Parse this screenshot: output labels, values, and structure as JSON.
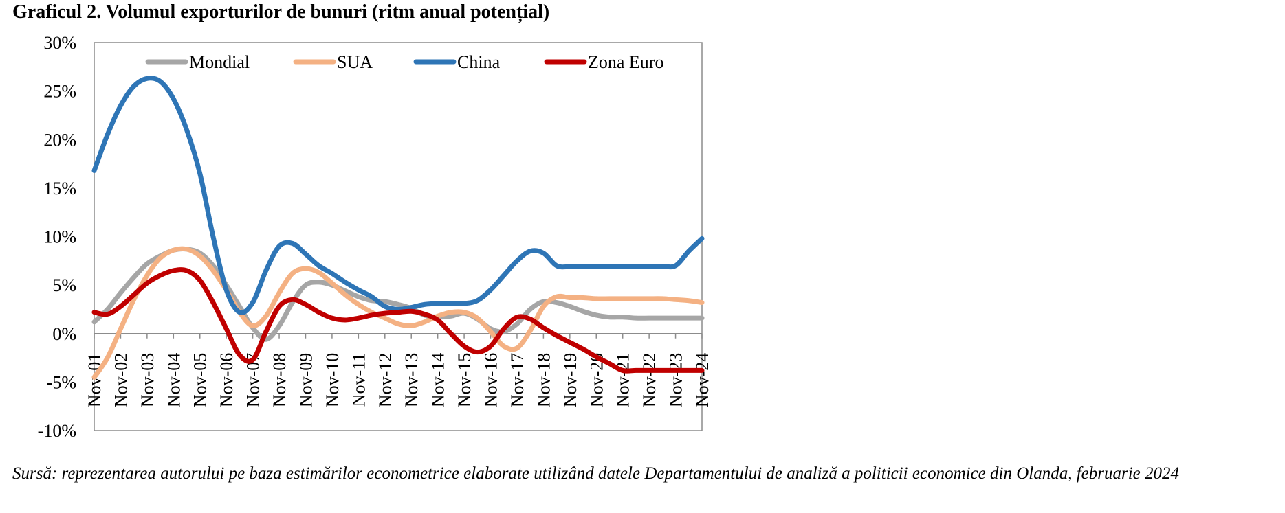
{
  "title": "Graficul 2. Volumul exporturilor de bunuri (ritm anual potențial)",
  "source_note": "Sursă: reprezentarea autorului pe baza estimărilor econometrice elaborate utilizând datele Departamentului de analiză a politicii economice din Olanda, februarie 2024",
  "chart_data": {
    "type": "line",
    "title": "Graficul 2. Volumul exporturilor de bunuri (ritm anual potențial)",
    "categories": [
      "Nov-01",
      "Nov-02",
      "Nov-03",
      "Nov-04",
      "Nov-05",
      "Nov-06",
      "Nov-07",
      "Nov-08",
      "Nov-09",
      "Nov-10",
      "Nov-11",
      "Nov-12",
      "Nov-13",
      "Nov-14",
      "Nov-15",
      "Nov-16",
      "Nov-17",
      "Nov-18",
      "Nov-19",
      "Nov-20",
      "Nov-21",
      "Nov-22",
      "Nov-23",
      "Nov-24"
    ],
    "x": [
      2001.0,
      2001.5,
      2002.0,
      2002.5,
      2003.0,
      2003.5,
      2004.0,
      2004.5,
      2005.0,
      2005.5,
      2006.0,
      2006.5,
      2007.0,
      2007.5,
      2008.0,
      2008.5,
      2009.0,
      2009.5,
      2010.0,
      2010.5,
      2011.0,
      2011.5,
      2012.0,
      2012.5,
      2013.0,
      2013.5,
      2014.0,
      2014.5,
      2015.0,
      2015.5,
      2016.0,
      2016.5,
      2017.0,
      2017.5,
      2018.0,
      2018.5,
      2019.0,
      2019.5,
      2020.0,
      2020.5,
      2021.0,
      2021.5,
      2022.0,
      2022.5,
      2023.0,
      2023.5,
      2024.0
    ],
    "ylim": [
      -10,
      30
    ],
    "y_ticks": [
      30,
      25,
      20,
      15,
      10,
      5,
      0,
      -5,
      -10
    ],
    "y_tick_labels": [
      "30%",
      "25%",
      "20%",
      "15%",
      "10%",
      "5%",
      "0%",
      "-5%",
      "-10%"
    ],
    "y_unit": "%",
    "grid": false,
    "legend_position": "top-inside",
    "series": [
      {
        "name": "Mondial",
        "color": "#a6a6a6",
        "values": [
          1.2,
          2.5,
          4.2,
          5.8,
          7.2,
          8.0,
          8.6,
          8.7,
          8.3,
          7.0,
          5.0,
          2.8,
          0.6,
          -0.6,
          0.8,
          3.2,
          5.0,
          5.3,
          5.0,
          4.4,
          3.8,
          3.4,
          3.3,
          3.0,
          2.6,
          1.9,
          1.7,
          1.8,
          2.1,
          1.5,
          0.5,
          0.2,
          1.0,
          2.5,
          3.3,
          3.2,
          2.8,
          2.3,
          1.9,
          1.7,
          1.7,
          1.6,
          1.6,
          1.6,
          1.6,
          1.6,
          1.6
        ]
      },
      {
        "name": "SUA",
        "color": "#f4b183",
        "values": [
          -4.5,
          -2.5,
          0.5,
          3.5,
          6.0,
          7.8,
          8.6,
          8.7,
          8.0,
          6.5,
          4.5,
          2.2,
          0.8,
          1.8,
          4.2,
          6.2,
          6.7,
          6.3,
          5.2,
          4.0,
          3.0,
          2.2,
          1.6,
          1.0,
          0.8,
          1.2,
          1.8,
          2.2,
          2.2,
          1.6,
          0.2,
          -1.3,
          -1.5,
          0.3,
          2.8,
          3.8,
          3.7,
          3.7,
          3.6,
          3.6,
          3.6,
          3.6,
          3.6,
          3.6,
          3.5,
          3.4,
          3.2
        ]
      },
      {
        "name": "China",
        "color": "#2e75b6",
        "values": [
          16.8,
          20.5,
          23.5,
          25.5,
          26.3,
          26.0,
          24.2,
          21.0,
          16.5,
          10.0,
          4.5,
          2.2,
          3.2,
          6.5,
          9.0,
          9.3,
          8.2,
          7.0,
          6.2,
          5.3,
          4.5,
          3.8,
          2.8,
          2.5,
          2.7,
          3.0,
          3.1,
          3.1,
          3.1,
          3.4,
          4.5,
          6.0,
          7.5,
          8.5,
          8.3,
          7.0,
          6.9,
          6.9,
          6.9,
          6.9,
          6.9,
          6.9,
          6.9,
          6.95,
          7.0,
          8.5,
          9.8
        ]
      },
      {
        "name": "Zona Euro",
        "color": "#c00000",
        "values": [
          2.2,
          2.0,
          2.8,
          4.0,
          5.2,
          6.0,
          6.5,
          6.5,
          5.5,
          3.2,
          0.5,
          -2.2,
          -2.7,
          0.2,
          2.8,
          3.5,
          3.0,
          2.2,
          1.6,
          1.4,
          1.6,
          1.9,
          2.1,
          2.2,
          2.3,
          2.0,
          1.4,
          0.0,
          -1.3,
          -1.9,
          -1.3,
          0.5,
          1.7,
          1.5,
          0.6,
          -0.2,
          -0.9,
          -1.6,
          -2.4,
          -3.1,
          -3.8,
          -3.8,
          -3.8,
          -3.8,
          -3.8,
          -3.8,
          -3.8
        ]
      }
    ]
  }
}
